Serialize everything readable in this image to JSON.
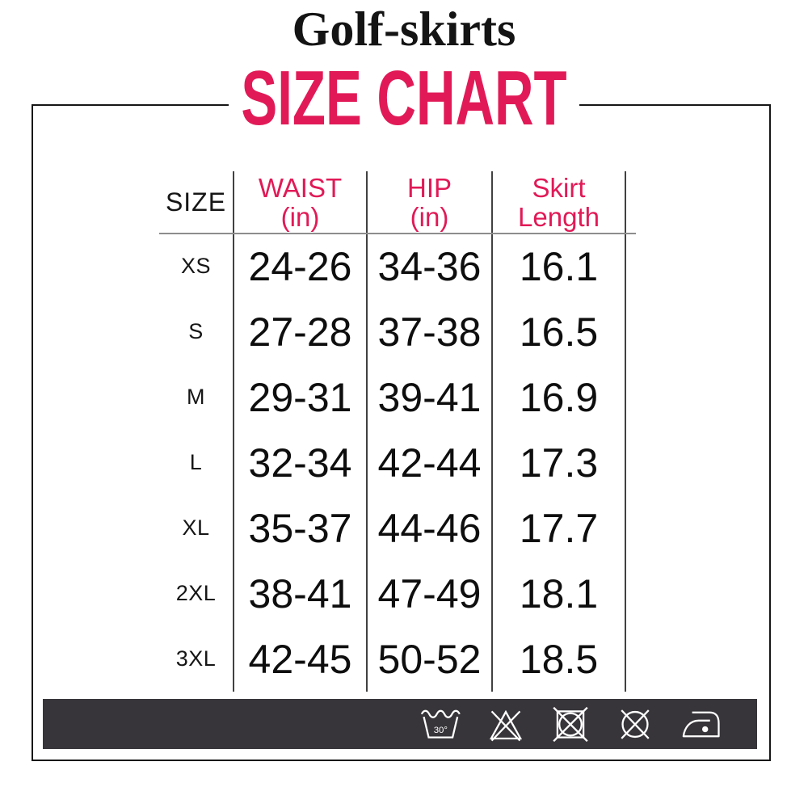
{
  "page": {
    "background": "#ffffff"
  },
  "brand": {
    "title": "Golf-skirts"
  },
  "heading": {
    "text": "SIZE CHART",
    "color": "#E11A57"
  },
  "table": {
    "columns": [
      {
        "id": "size",
        "line1": "SIZE",
        "line2": "",
        "color": "#161616"
      },
      {
        "id": "waist",
        "line1": "WAIST",
        "line2": "(in)",
        "color": "#E11A57"
      },
      {
        "id": "hip",
        "line1": "HIP",
        "line2": "(in)",
        "color": "#E11A57"
      },
      {
        "id": "skirt-length",
        "line1": "Skirt",
        "line2": "Length",
        "color": "#E11A57"
      }
    ]
  },
  "chart_data": {
    "type": "table",
    "title": "SIZE CHART",
    "brand": "Golf-skirts",
    "columns": [
      "SIZE",
      "WAIST (in)",
      "HIP (in)",
      "Skirt Length"
    ],
    "rows": [
      [
        "XS",
        "24-26",
        "34-36",
        "16.1"
      ],
      [
        "S",
        "27-28",
        "37-38",
        "16.5"
      ],
      [
        "M",
        "29-31",
        "39-41",
        "16.9"
      ],
      [
        "L",
        "32-34",
        "42-44",
        "17.3"
      ],
      [
        "XL",
        "35-37",
        "44-46",
        "17.7"
      ],
      [
        "2XL",
        "38-41",
        "47-49",
        "18.1"
      ],
      [
        "3XL",
        "42-45",
        "50-52",
        "18.5"
      ]
    ],
    "units": "in"
  },
  "care_bar": {
    "background": "#38353A",
    "icons": [
      {
        "name": "machine-wash-30-icon",
        "label": "30°"
      },
      {
        "name": "do-not-bleach-icon"
      },
      {
        "name": "do-not-tumble-dry-icon"
      },
      {
        "name": "do-not-dry-clean-icon"
      },
      {
        "name": "iron-low-heat-icon"
      }
    ]
  },
  "colors": {
    "accent_pink": "#E11A57",
    "frame_border": "#161616",
    "table_line": "#414141",
    "header_underline": "#8d8d8d",
    "care_bar_bg": "#38353A",
    "text": "#141414"
  }
}
